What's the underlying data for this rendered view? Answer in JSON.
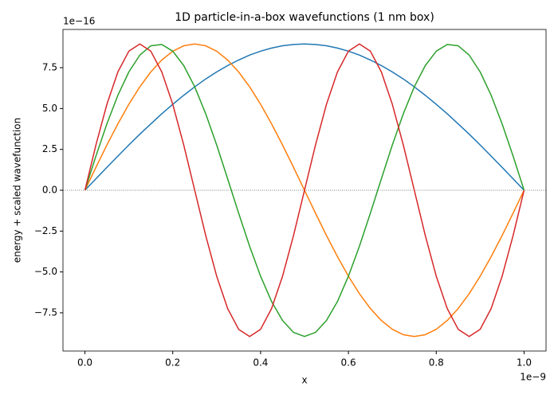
{
  "chart_data": {
    "type": "line",
    "title": "1D particle-in-a-box wavefunctions (1 nm box)",
    "xlabel": "x",
    "ylabel": "energy + scaled wavefunction",
    "x_offset_label": "1e−9",
    "y_offset_label": "1e−16",
    "x": [
      0,
      0.025,
      0.05,
      0.075,
      0.1,
      0.125,
      0.15,
      0.175,
      0.2,
      0.225,
      0.25,
      0.275,
      0.3,
      0.325,
      0.35,
      0.375,
      0.4,
      0.425,
      0.45,
      0.475,
      0.5,
      0.525,
      0.55,
      0.575,
      0.6,
      0.625,
      0.65,
      0.675,
      0.7,
      0.725,
      0.75,
      0.775,
      0.8,
      0.825,
      0.85,
      0.875,
      0.9,
      0.925,
      0.95,
      0.975,
      1
    ],
    "series": [
      {
        "color": "#1f77b4",
        "values": [
          0,
          0.7,
          1.4,
          2.09,
          2.77,
          3.43,
          4.06,
          4.68,
          5.26,
          5.81,
          6.33,
          6.81,
          7.24,
          7.63,
          7.97,
          8.27,
          8.51,
          8.7,
          8.84,
          8.92,
          8.95,
          8.92,
          8.84,
          8.7,
          8.51,
          8.27,
          7.97,
          7.63,
          7.24,
          6.81,
          6.33,
          5.81,
          5.26,
          4.68,
          4.06,
          3.43,
          2.77,
          2.09,
          1.4,
          0.7,
          0
        ]
      },
      {
        "color": "#ff7f0e",
        "values": [
          0,
          1.4,
          2.77,
          4.06,
          5.26,
          6.33,
          7.24,
          7.97,
          8.51,
          8.84,
          8.95,
          8.84,
          8.51,
          7.97,
          7.24,
          6.33,
          5.26,
          4.06,
          2.77,
          1.4,
          0,
          -1.4,
          -2.77,
          -4.06,
          -5.26,
          -6.33,
          -7.24,
          -7.97,
          -8.51,
          -8.84,
          -8.95,
          -8.84,
          -8.51,
          -7.97,
          -7.24,
          -6.33,
          -5.26,
          -4.06,
          -2.77,
          -1.4,
          0
        ]
      },
      {
        "color": "#2ca02c",
        "values": [
          0,
          2.09,
          4.06,
          5.81,
          7.24,
          8.27,
          8.84,
          8.92,
          8.51,
          7.63,
          6.33,
          4.68,
          2.77,
          0.7,
          -1.4,
          -3.43,
          -5.26,
          -6.81,
          -7.97,
          -8.7,
          -8.95,
          -8.7,
          -7.97,
          -6.81,
          -5.26,
          -3.43,
          -1.4,
          0.7,
          2.77,
          4.68,
          6.33,
          7.63,
          8.51,
          8.92,
          8.84,
          8.27,
          7.24,
          5.81,
          4.06,
          2.09,
          0
        ]
      },
      {
        "color": "#d62728",
        "values": [
          0,
          2.77,
          5.26,
          7.24,
          8.51,
          8.95,
          8.51,
          7.24,
          5.26,
          2.77,
          0,
          -2.77,
          -5.26,
          -7.24,
          -8.51,
          -8.95,
          -8.51,
          -7.24,
          -5.26,
          -2.77,
          0,
          2.77,
          5.26,
          7.24,
          8.51,
          8.95,
          8.51,
          7.24,
          5.26,
          2.77,
          0,
          -2.77,
          -5.26,
          -7.24,
          -8.51,
          -8.95,
          -8.51,
          -7.24,
          -5.26,
          -2.77,
          0
        ]
      }
    ],
    "reference_line": 0,
    "xlim": [
      -0.05,
      1.05
    ],
    "ylim": [
      -9.84,
      9.84
    ],
    "xticks": [
      {
        "value": 0,
        "label": "0.0"
      },
      {
        "value": 0.2,
        "label": "0.2"
      },
      {
        "value": 0.4,
        "label": "0.4"
      },
      {
        "value": 0.6,
        "label": "0.6"
      },
      {
        "value": 0.8,
        "label": "0.8"
      },
      {
        "value": 1,
        "label": "1.0"
      }
    ],
    "yticks": [
      {
        "value": -7.5,
        "label": "−7.5"
      },
      {
        "value": -5,
        "label": "−5.0"
      },
      {
        "value": -2.5,
        "label": "−2.5"
      },
      {
        "value": 0,
        "label": "0.0"
      },
      {
        "value": 2.5,
        "label": "2.5"
      },
      {
        "value": 5,
        "label": "5.0"
      },
      {
        "value": 7.5,
        "label": "7.5"
      }
    ]
  }
}
